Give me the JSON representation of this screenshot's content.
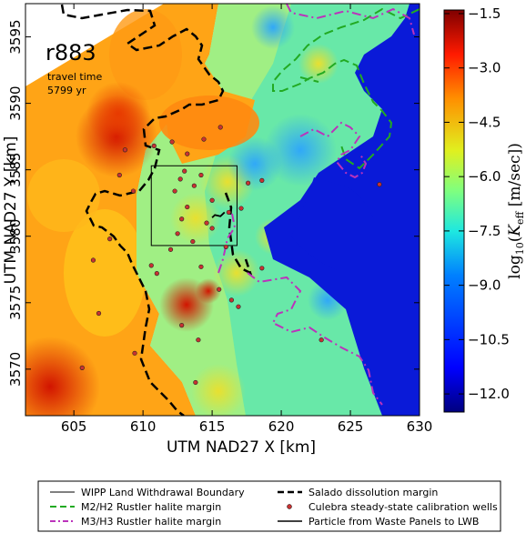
{
  "chart_data": {
    "type": "heatmap",
    "title": "",
    "xlabel": "UTM NAD27 X [km]",
    "ylabel": "UTM NAD27 Y [km]",
    "xlim": [
      601.5,
      630
    ],
    "ylim": [
      3566.5,
      3597.5
    ],
    "xticks": [
      605,
      610,
      615,
      620,
      625,
      630
    ],
    "yticks": [
      3570,
      3575,
      3580,
      3585,
      3590,
      3595
    ],
    "colorbar": {
      "label_prefix": "log",
      "label_sub": "10",
      "label_var": "K",
      "label_var_sub": "eff",
      "label_unit": "[m/sec]",
      "range": [
        -12.5,
        -1.4
      ],
      "ticks": [
        -1.5,
        -3.0,
        -4.5,
        -6.0,
        -7.5,
        -9.0,
        -10.5,
        -12.0
      ],
      "tick_labels": [
        "−1.5",
        "−3.0",
        "−4.5",
        "−6.0",
        "−7.5",
        "−9.0",
        "−10.5",
        "−12.0"
      ]
    },
    "annotation": {
      "realization": "r883",
      "travel_time_label": "travel time",
      "travel_time_value": "5799 yr"
    },
    "wipp_boundary": {
      "x": [
        610.6,
        616.8
      ],
      "y": [
        3579.3,
        3585.3
      ]
    },
    "wells": [
      {
        "x": 605.6,
        "y": 3570.1
      },
      {
        "x": 606.8,
        "y": 3574.2
      },
      {
        "x": 606.4,
        "y": 3578.2
      },
      {
        "x": 607.6,
        "y": 3579.8
      },
      {
        "x": 608.3,
        "y": 3584.6
      },
      {
        "x": 609.3,
        "y": 3583.4
      },
      {
        "x": 608.7,
        "y": 3586.5
      },
      {
        "x": 610.8,
        "y": 3586.8
      },
      {
        "x": 612.1,
        "y": 3587.1
      },
      {
        "x": 613.2,
        "y": 3586.2
      },
      {
        "x": 614.4,
        "y": 3587.3
      },
      {
        "x": 615.6,
        "y": 3588.2
      },
      {
        "x": 612.7,
        "y": 3584.3
      },
      {
        "x": 613.0,
        "y": 3584.9
      },
      {
        "x": 612.3,
        "y": 3583.4
      },
      {
        "x": 613.7,
        "y": 3583.8
      },
      {
        "x": 614.2,
        "y": 3584.6
      },
      {
        "x": 615.0,
        "y": 3582.7
      },
      {
        "x": 613.2,
        "y": 3582.2
      },
      {
        "x": 612.8,
        "y": 3581.3
      },
      {
        "x": 614.6,
        "y": 3581.0
      },
      {
        "x": 615.0,
        "y": 3580.6
      },
      {
        "x": 612.5,
        "y": 3580.2
      },
      {
        "x": 613.6,
        "y": 3579.6
      },
      {
        "x": 612.0,
        "y": 3579.0
      },
      {
        "x": 616.2,
        "y": 3581.8
      },
      {
        "x": 616.0,
        "y": 3579.2
      },
      {
        "x": 617.6,
        "y": 3584.0
      },
      {
        "x": 617.1,
        "y": 3582.1
      },
      {
        "x": 618.6,
        "y": 3584.2
      },
      {
        "x": 611.0,
        "y": 3577.2
      },
      {
        "x": 614.2,
        "y": 3577.7
      },
      {
        "x": 615.5,
        "y": 3576.0
      },
      {
        "x": 616.4,
        "y": 3575.2
      },
      {
        "x": 616.9,
        "y": 3574.7
      },
      {
        "x": 612.8,
        "y": 3573.3
      },
      {
        "x": 614.0,
        "y": 3572.2
      },
      {
        "x": 622.9,
        "y": 3572.2
      },
      {
        "x": 610.6,
        "y": 3577.8
      },
      {
        "x": 618.6,
        "y": 3577.6
      },
      {
        "x": 627.1,
        "y": 3583.9
      },
      {
        "x": 613.8,
        "y": 3569.0
      },
      {
        "x": 609.4,
        "y": 3571.2
      }
    ],
    "particle_path": {
      "x": [
        615.9,
        615.6,
        615.2,
        615.0,
        615.0
      ],
      "y": [
        3581.8,
        3581.5,
        3581.6,
        3581.4,
        3581.4
      ]
    }
  },
  "legend": {
    "items": [
      {
        "label": "WIPP Land Withdrawal Boundary",
        "symbol": "line",
        "color": "#000000"
      },
      {
        "label": "Salado dissolution margin",
        "symbol": "dashed",
        "color": "#000000"
      },
      {
        "label": "M2/H2 Rustler halite margin",
        "symbol": "dashed",
        "color": "#22aa22"
      },
      {
        "label": "Culebra steady-state calibration wells",
        "symbol": "dot",
        "color": "#c83232"
      },
      {
        "label": "M3/H3 Rustler halite margin",
        "symbol": "dashdot",
        "color": "#bb33bb"
      },
      {
        "label": "Particle from Waste Panels to LWB",
        "symbol": "line",
        "color": "#000000"
      }
    ]
  },
  "colors": {
    "ocean_blue": "#0a1ad8",
    "salado_margin": "#000000",
    "m2_margin": "#22aa22",
    "m3_margin": "#bb33bb",
    "well_dot": "#c83232"
  }
}
